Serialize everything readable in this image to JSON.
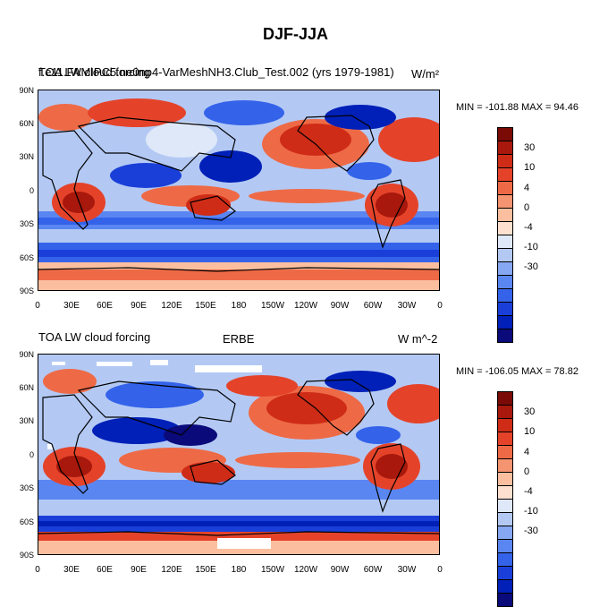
{
  "title": "DJF-JJA",
  "colors": {
    "scale": [
      "#0a0a7a",
      "#0020b8",
      "#1a3fd8",
      "#3463ea",
      "#5a86f2",
      "#86a7f2",
      "#b3c9f4",
      "#dfe8f8",
      "#fde0cf",
      "#fbbf9f",
      "#f59470",
      "#ee6a46",
      "#e4432a",
      "#cf2c17",
      "#a8180c",
      "#7a0a05"
    ]
  },
  "colorbar_labels": [
    "30",
    "10",
    "4",
    "0",
    "-4",
    "-10",
    "-30"
  ],
  "lat_labels": [
    "90N",
    "60N",
    "30N",
    "0",
    "30S",
    "60S",
    "90S"
  ],
  "lon_labels": [
    "0",
    "30E",
    "60E",
    "90E",
    "120E",
    "150E",
    "180",
    "150W",
    "120W",
    "90W",
    "60W",
    "30W",
    "0"
  ],
  "panels": [
    {
      "left_title": "TOA LW cloud forcing",
      "overlap_title": "f.e11.FAMIPC5.ne0np4-VarMeshNH3.Club_Test.002 (yrs 1979-1981)",
      "center_title": "",
      "units": "W/m²",
      "minmax": "MIN = -101.88 MAX =  94.46"
    },
    {
      "left_title": "TOA LW cloud forcing",
      "overlap_title": "",
      "center_title": "ERBE",
      "units": "W m^-2",
      "minmax": "MIN = -106.05 MAX =  78.82"
    }
  ]
}
